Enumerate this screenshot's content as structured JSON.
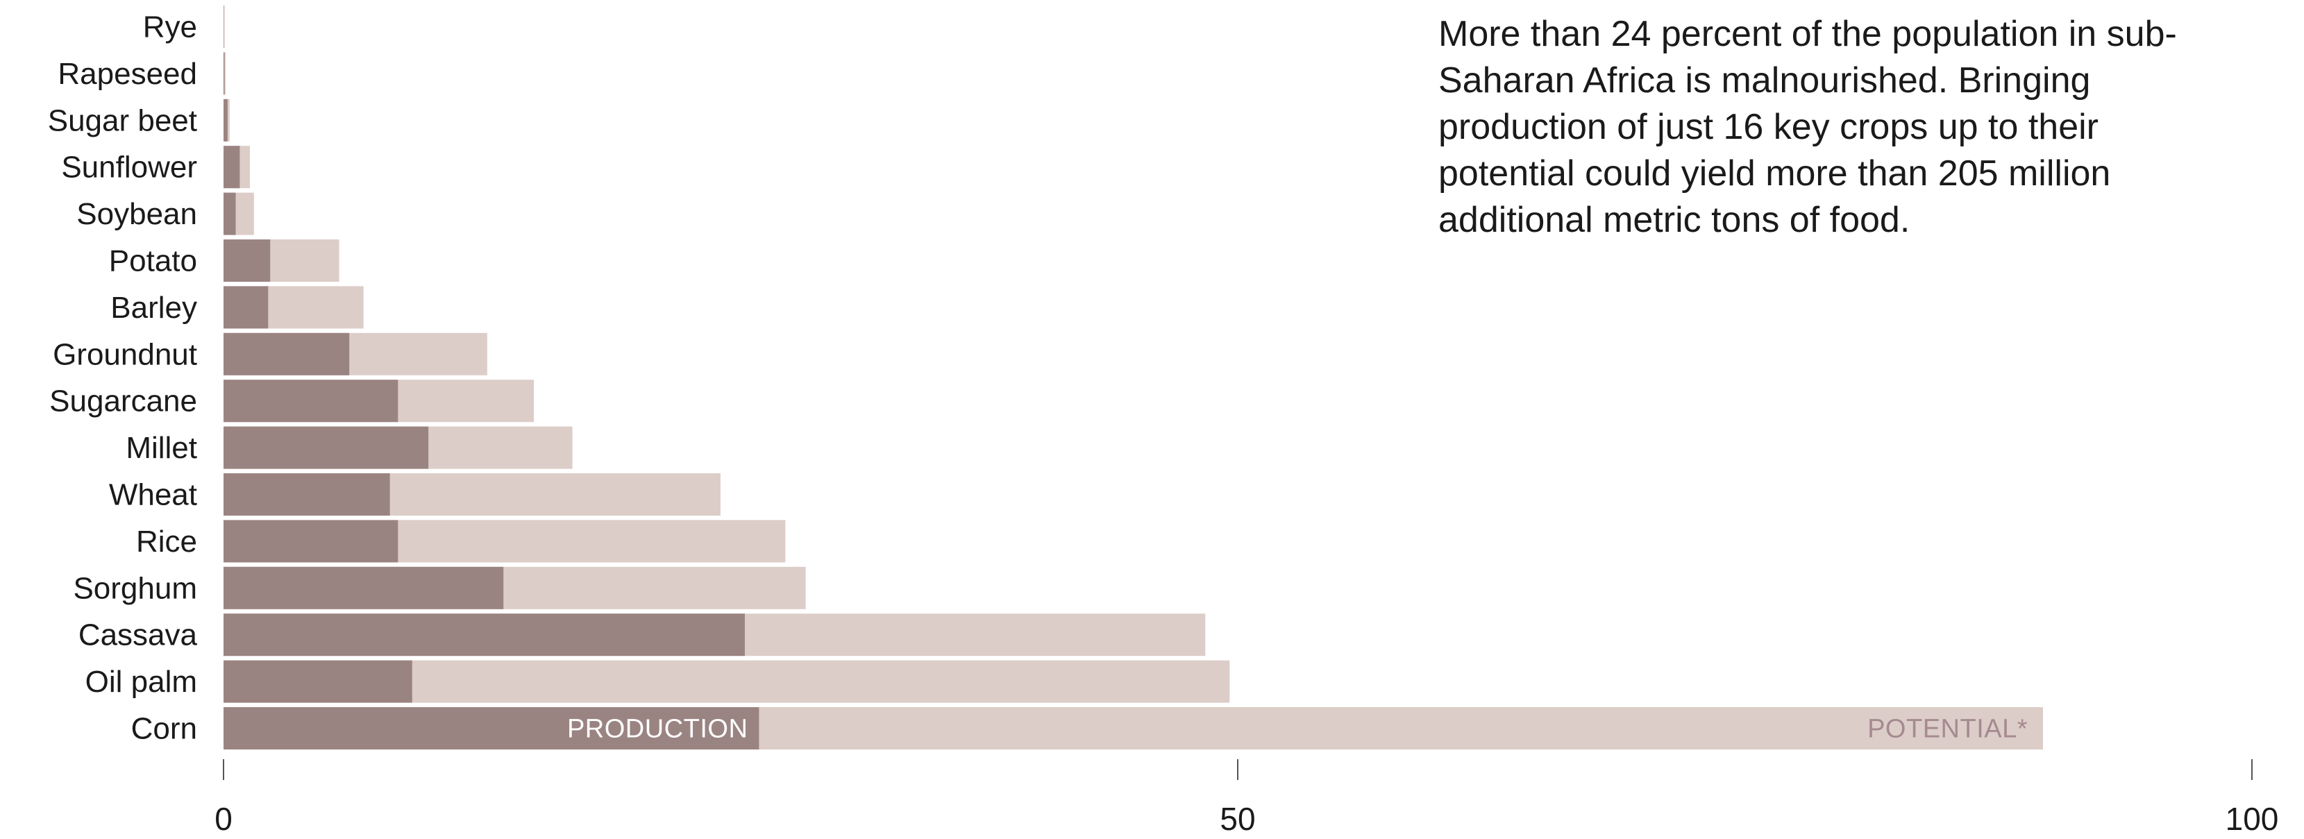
{
  "annotation": "More than 24 percent of the population in sub-Saharan Africa is malnourished. Bringing production of just 16 key crops up to their potential could yield more than 205 million additional metric tons of food.",
  "chart_data": {
    "type": "bar",
    "orientation": "horizontal",
    "stacked": "overlay",
    "title": "",
    "xlabel": "",
    "ylabel": "",
    "xlim": [
      0,
      100
    ],
    "xticks": [
      0,
      50,
      100
    ],
    "categories": [
      "Rye",
      "Rapeseed",
      "Sugar beet",
      "Sunflower",
      "Soybean",
      "Potato",
      "Barley",
      "Groundnut",
      "Sugarcane",
      "Millet",
      "Wheat",
      "Rice",
      "Sorghum",
      "Cassava",
      "Oil palm",
      "Corn"
    ],
    "series": [
      {
        "name": "PRODUCTION",
        "color": "#9a8482",
        "values": [
          0.02,
          0.05,
          0.2,
          0.8,
          0.6,
          2.3,
          2.2,
          6.2,
          8.6,
          10.1,
          8.2,
          8.6,
          13.8,
          25.7,
          9.3,
          26.4
        ]
      },
      {
        "name": "POTENTIAL*",
        "color": "#dccdc8",
        "values": [
          0.05,
          0.1,
          0.3,
          1.3,
          1.5,
          5.7,
          6.9,
          13.0,
          15.3,
          17.2,
          24.5,
          27.7,
          28.7,
          48.4,
          49.6,
          89.7
        ]
      }
    ],
    "legend": "inside-bars"
  }
}
